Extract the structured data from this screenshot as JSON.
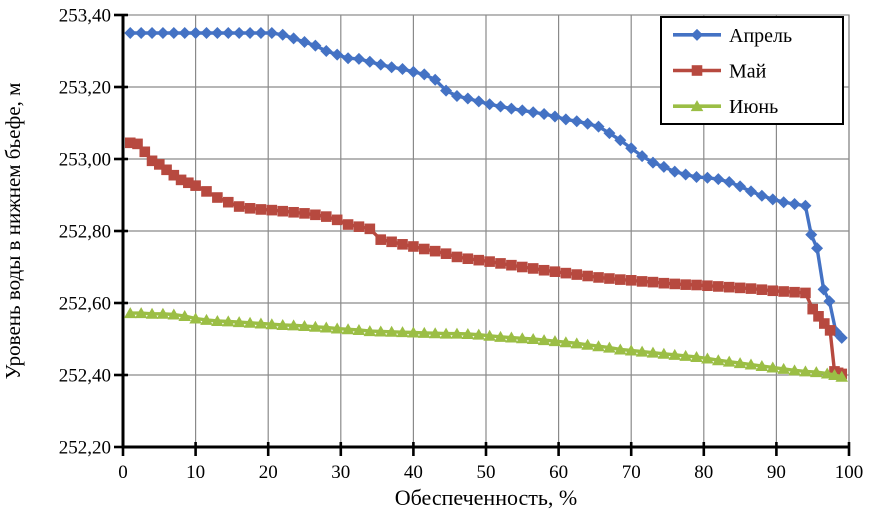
{
  "chart_data": {
    "type": "line",
    "title": "",
    "xlabel": "Обеспеченность, %",
    "ylabel": "Уровень воды в нижнем бьефе, м",
    "xlim": [
      0,
      100
    ],
    "ylim": [
      252.2,
      253.4
    ],
    "grid": true,
    "legend_position": "top-right",
    "x_ticks": [
      0,
      10,
      20,
      30,
      40,
      50,
      60,
      70,
      80,
      90,
      100
    ],
    "x_tick_labels": [
      "0",
      "10",
      "20",
      "30",
      "40",
      "50",
      "60",
      "70",
      "80",
      "90",
      "100"
    ],
    "y_ticks": [
      252.2,
      252.4,
      252.6,
      252.8,
      253.0,
      253.2,
      253.4
    ],
    "y_tick_labels": [
      "252,20",
      "252,40",
      "252,60",
      "252,80",
      "253,00",
      "253,20",
      "253,40"
    ],
    "grid_color": "#8a8a8a",
    "axis_color": "#000000",
    "series": [
      {
        "id": "april",
        "name": "Апрель",
        "color": "#4472C4",
        "marker": "diamond",
        "points": [
          [
            1,
            253.35
          ],
          [
            2.5,
            253.35
          ],
          [
            4,
            253.35
          ],
          [
            5.5,
            253.35
          ],
          [
            7,
            253.35
          ],
          [
            8.5,
            253.35
          ],
          [
            10,
            253.35
          ],
          [
            11.5,
            253.35
          ],
          [
            13,
            253.35
          ],
          [
            14.5,
            253.35
          ],
          [
            16,
            253.35
          ],
          [
            17.5,
            253.35
          ],
          [
            19,
            253.35
          ],
          [
            20.5,
            253.35
          ],
          [
            22,
            253.345
          ],
          [
            23.5,
            253.335
          ],
          [
            25,
            253.325
          ],
          [
            26.5,
            253.315
          ],
          [
            28,
            253.3
          ],
          [
            29.5,
            253.29
          ],
          [
            31,
            253.28
          ],
          [
            32.5,
            253.278
          ],
          [
            34,
            253.27
          ],
          [
            35.5,
            253.262
          ],
          [
            37,
            253.255
          ],
          [
            38.5,
            253.25
          ],
          [
            40,
            253.242
          ],
          [
            41.5,
            253.235
          ],
          [
            43,
            253.22
          ],
          [
            44.5,
            253.19
          ],
          [
            46,
            253.175
          ],
          [
            47.5,
            253.168
          ],
          [
            49,
            253.16
          ],
          [
            50.5,
            253.152
          ],
          [
            52,
            253.146
          ],
          [
            53.5,
            253.14
          ],
          [
            55,
            253.135
          ],
          [
            56.5,
            253.13
          ],
          [
            58,
            253.125
          ],
          [
            59.5,
            253.118
          ],
          [
            61,
            253.11
          ],
          [
            62.5,
            253.105
          ],
          [
            64,
            253.098
          ],
          [
            65.5,
            253.09
          ],
          [
            67,
            253.072
          ],
          [
            68.5,
            253.052
          ],
          [
            70,
            253.03
          ],
          [
            71.5,
            253.008
          ],
          [
            73,
            252.99
          ],
          [
            74.5,
            252.978
          ],
          [
            76,
            252.965
          ],
          [
            77.5,
            252.957
          ],
          [
            79,
            252.95
          ],
          [
            80.5,
            252.948
          ],
          [
            82,
            252.944
          ],
          [
            83.5,
            252.936
          ],
          [
            85,
            252.924
          ],
          [
            86.5,
            252.91
          ],
          [
            88,
            252.898
          ],
          [
            89.5,
            252.888
          ],
          [
            91,
            252.88
          ],
          [
            92.5,
            252.875
          ],
          [
            94,
            252.87
          ],
          [
            94.8,
            252.79
          ],
          [
            95.6,
            252.752
          ],
          [
            96.5,
            252.638
          ],
          [
            97.3,
            252.605
          ],
          [
            98.2,
            252.52
          ],
          [
            99,
            252.503
          ]
        ]
      },
      {
        "id": "may",
        "name": "Май",
        "color": "#B7493F",
        "marker": "square",
        "points": [
          [
            1,
            253.045
          ],
          [
            2,
            253.042
          ],
          [
            3,
            253.02
          ],
          [
            4,
            252.995
          ],
          [
            5,
            252.985
          ],
          [
            6,
            252.97
          ],
          [
            7,
            252.955
          ],
          [
            8,
            252.942
          ],
          [
            9,
            252.934
          ],
          [
            10,
            252.926
          ],
          [
            11.5,
            252.91
          ],
          [
            13,
            252.893
          ],
          [
            14.5,
            252.88
          ],
          [
            16,
            252.868
          ],
          [
            17.5,
            252.863
          ],
          [
            19,
            252.86
          ],
          [
            20.5,
            252.858
          ],
          [
            22,
            252.855
          ],
          [
            23.5,
            252.852
          ],
          [
            25,
            252.849
          ],
          [
            26.5,
            252.845
          ],
          [
            28,
            252.84
          ],
          [
            29.5,
            252.831
          ],
          [
            31,
            252.818
          ],
          [
            32.5,
            252.812
          ],
          [
            34,
            252.806
          ],
          [
            35.5,
            252.776
          ],
          [
            37,
            252.77
          ],
          [
            38.5,
            252.763
          ],
          [
            40,
            252.757
          ],
          [
            41.5,
            252.75
          ],
          [
            43,
            252.744
          ],
          [
            44.5,
            252.737
          ],
          [
            46,
            252.728
          ],
          [
            47.5,
            252.723
          ],
          [
            49,
            252.719
          ],
          [
            50.5,
            252.715
          ],
          [
            52,
            252.71
          ],
          [
            53.5,
            252.705
          ],
          [
            55,
            252.7
          ],
          [
            56.5,
            252.696
          ],
          [
            58,
            252.691
          ],
          [
            59.5,
            252.687
          ],
          [
            61,
            252.683
          ],
          [
            62.5,
            252.679
          ],
          [
            64,
            252.675
          ],
          [
            65.5,
            252.671
          ],
          [
            67,
            252.668
          ],
          [
            68.5,
            252.665
          ],
          [
            70,
            252.663
          ],
          [
            71.5,
            252.66
          ],
          [
            73,
            252.658
          ],
          [
            74.5,
            252.655
          ],
          [
            76,
            252.653
          ],
          [
            77.5,
            252.651
          ],
          [
            79,
            252.65
          ],
          [
            80.5,
            252.648
          ],
          [
            82,
            252.646
          ],
          [
            83.5,
            252.644
          ],
          [
            85,
            252.642
          ],
          [
            86.5,
            252.64
          ],
          [
            88,
            252.637
          ],
          [
            89.5,
            252.634
          ],
          [
            91,
            252.632
          ],
          [
            92.5,
            252.63
          ],
          [
            94,
            252.628
          ],
          [
            95,
            252.583
          ],
          [
            95.8,
            252.563
          ],
          [
            96.6,
            252.543
          ],
          [
            97.4,
            252.524
          ],
          [
            98,
            252.41
          ],
          [
            98.5,
            252.406
          ],
          [
            99,
            252.403
          ]
        ]
      },
      {
        "id": "june",
        "name": "Июнь",
        "color": "#9BBE45",
        "marker": "triangle",
        "points": [
          [
            1,
            252.572
          ],
          [
            2.5,
            252.572
          ],
          [
            4,
            252.57
          ],
          [
            5.5,
            252.57
          ],
          [
            7,
            252.568
          ],
          [
            8.5,
            252.564
          ],
          [
            10,
            252.557
          ],
          [
            11.5,
            252.553
          ],
          [
            13,
            252.55
          ],
          [
            14.5,
            252.549
          ],
          [
            16,
            252.547
          ],
          [
            17.5,
            252.545
          ],
          [
            19,
            252.543
          ],
          [
            20.5,
            252.541
          ],
          [
            22,
            252.539
          ],
          [
            23.5,
            252.538
          ],
          [
            25,
            252.536
          ],
          [
            26.5,
            252.534
          ],
          [
            28,
            252.532
          ],
          [
            29.5,
            252.529
          ],
          [
            31,
            252.527
          ],
          [
            32.5,
            252.525
          ],
          [
            34,
            252.522
          ],
          [
            35.5,
            252.521
          ],
          [
            37,
            252.52
          ],
          [
            38.5,
            252.519
          ],
          [
            40,
            252.518
          ],
          [
            41.5,
            252.517
          ],
          [
            43,
            252.516
          ],
          [
            44.5,
            252.515
          ],
          [
            46,
            252.515
          ],
          [
            47.5,
            252.514
          ],
          [
            49,
            252.512
          ],
          [
            50.5,
            252.509
          ],
          [
            52,
            252.506
          ],
          [
            53.5,
            252.504
          ],
          [
            55,
            252.502
          ],
          [
            56.5,
            252.5
          ],
          [
            58,
            252.497
          ],
          [
            59.5,
            252.494
          ],
          [
            61,
            252.491
          ],
          [
            62.5,
            252.488
          ],
          [
            64,
            252.484
          ],
          [
            65.5,
            252.48
          ],
          [
            67,
            252.476
          ],
          [
            68.5,
            252.471
          ],
          [
            70,
            252.468
          ],
          [
            71.5,
            252.465
          ],
          [
            73,
            252.462
          ],
          [
            74.5,
            252.459
          ],
          [
            76,
            252.456
          ],
          [
            77.5,
            252.453
          ],
          [
            79,
            252.45
          ],
          [
            80.5,
            252.446
          ],
          [
            82,
            252.441
          ],
          [
            83.5,
            252.437
          ],
          [
            85,
            252.433
          ],
          [
            86.5,
            252.429
          ],
          [
            88,
            252.425
          ],
          [
            89.5,
            252.421
          ],
          [
            91,
            252.417
          ],
          [
            92.5,
            252.413
          ],
          [
            94,
            252.41
          ],
          [
            95.5,
            252.408
          ],
          [
            97,
            252.404
          ],
          [
            98,
            252.4
          ],
          [
            99,
            252.395
          ]
        ]
      }
    ]
  }
}
